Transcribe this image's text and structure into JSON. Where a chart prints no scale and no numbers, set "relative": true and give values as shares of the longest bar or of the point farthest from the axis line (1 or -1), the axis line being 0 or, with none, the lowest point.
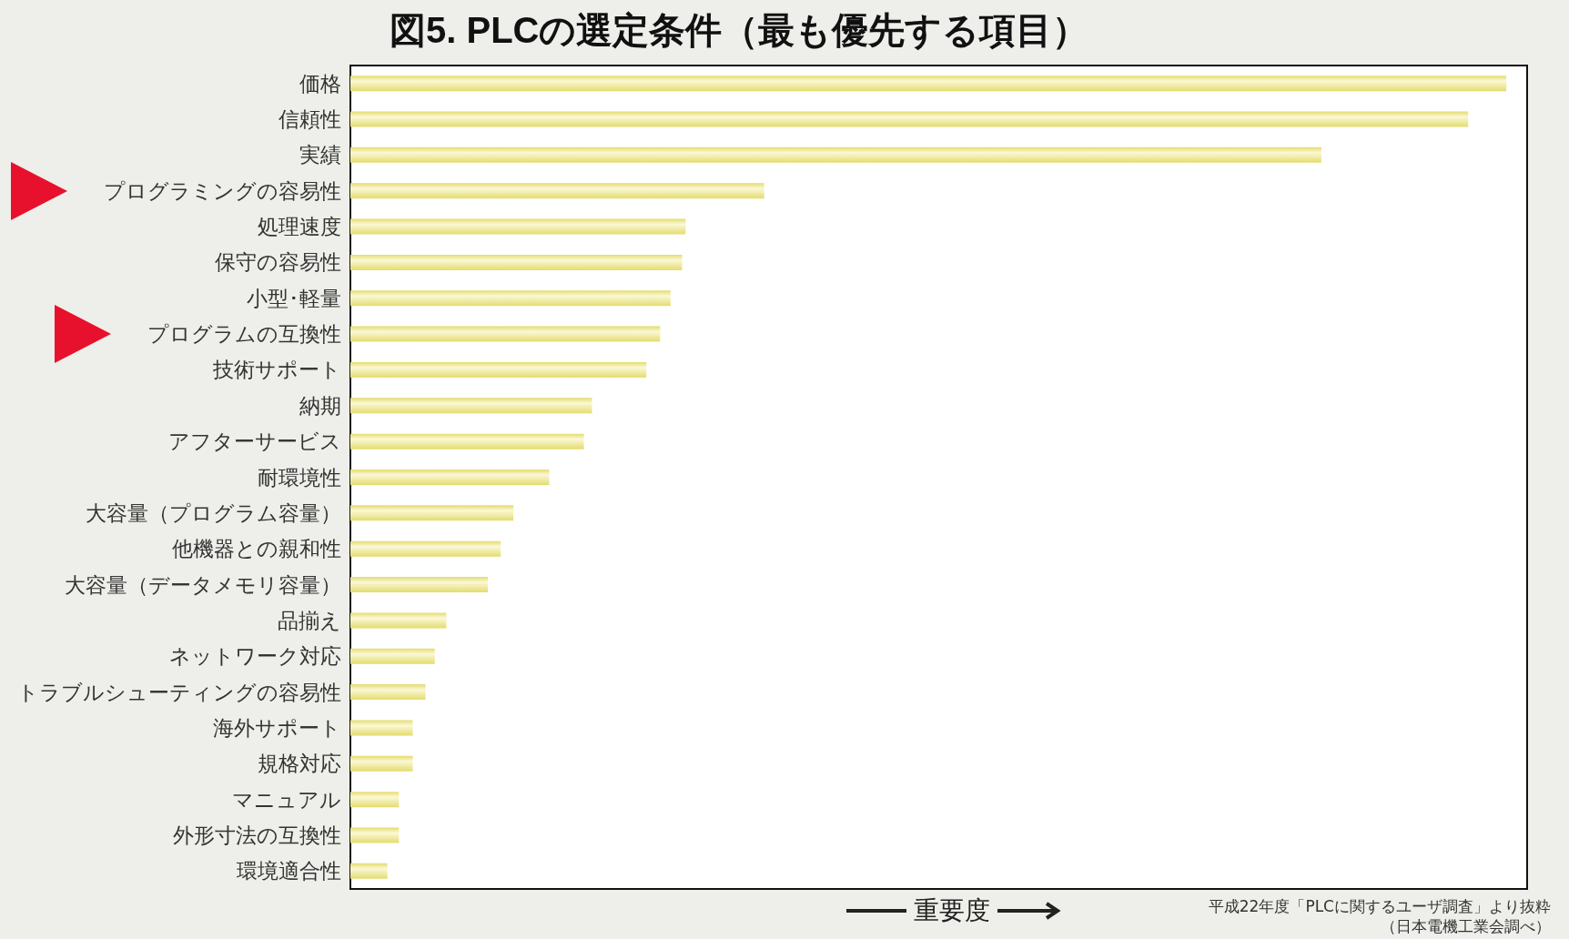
{
  "chart_data": {
    "type": "bar",
    "orientation": "horizontal",
    "relative": true,
    "title": "図5. PLCの選定条件（最も優先する項目）",
    "xlabel": "重要度",
    "categories": [
      "価格",
      "信頼性",
      "実績",
      "プログラミングの容易性",
      "処理速度",
      "保守の容易性",
      "小型･軽量",
      "プログラムの互換性",
      "技術サポート",
      "納期",
      "アフターサービス",
      "耐環境性",
      "大容量（プログラム容量）",
      "他機器との親和性",
      "大容量（データメモリ容量）",
      "品揃え",
      "ネットワーク対応",
      "トラブルシューティングの容易性",
      "海外サポート",
      "規格対応",
      "マニュアル",
      "外形寸法の互換性",
      "環境適合性"
    ],
    "values": [
      1,
      0.967,
      0.84,
      0.358,
      0.29,
      0.287,
      0.277,
      0.268,
      0.256,
      0.209,
      0.202,
      0.172,
      0.141,
      0.13,
      0.119,
      0.083,
      0.073,
      0.065,
      0.054,
      0.054,
      0.042,
      0.042,
      0.032
    ],
    "color": "#e3dc6e",
    "annotations": [
      "平成22年度「PLCに関するユーザ調査」より抜粋",
      "（日本電機工業会調べ）"
    ]
  }
}
